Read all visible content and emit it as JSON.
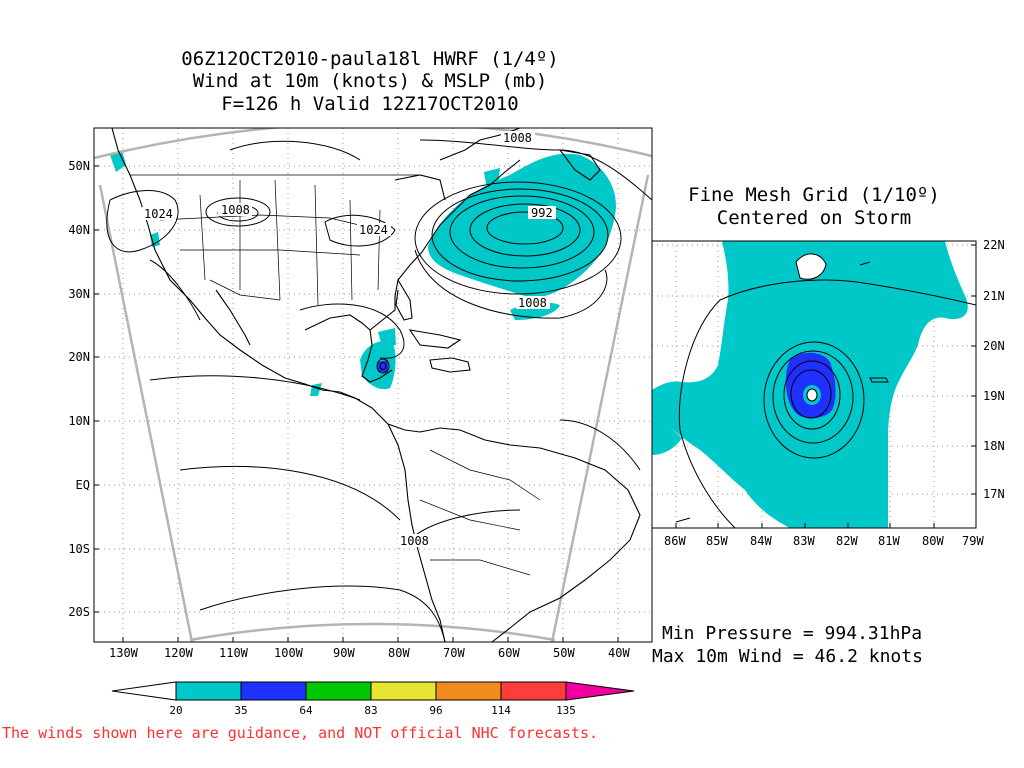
{
  "title": {
    "line1": "06Z12OCT2010-paula18l HWRF (1/4º)",
    "line2": "Wind at 10m (knots) & MSLP (mb)",
    "line3": "F=126 h Valid 12Z17OCT2010"
  },
  "main_map": {
    "lon_labels": [
      "130W",
      "120W",
      "110W",
      "100W",
      "90W",
      "80W",
      "70W",
      "60W",
      "50W",
      "40W"
    ],
    "lat_labels": [
      "50N",
      "40N",
      "30N",
      "20N",
      "10N",
      "EQ",
      "10S",
      "20S"
    ],
    "contour_labels": [
      "1008",
      "1024",
      "1008",
      "1024",
      "992",
      "1008",
      "1008"
    ]
  },
  "inset": {
    "title_line1": "Fine Mesh Grid (1/10º)",
    "title_line2": "Centered on Storm",
    "lon_labels": [
      "86W",
      "85W",
      "84W",
      "83W",
      "82W",
      "81W",
      "80W",
      "79W"
    ],
    "lat_labels": [
      "22N",
      "21N",
      "20N",
      "19N",
      "18N",
      "17N"
    ]
  },
  "stats": {
    "min_pressure": "Min Pressure = 994.31hPa",
    "max_wind": "Max 10m Wind = 46.2 knots"
  },
  "colorbar": {
    "labels": [
      "20",
      "35",
      "64",
      "83",
      "96",
      "114",
      "135"
    ],
    "colors": [
      "#00c8c8",
      "#2030ff",
      "#00c800",
      "#e6e632",
      "#f08c1e",
      "#ff3c3c",
      "#f000a0"
    ]
  },
  "disclaimer": "The winds shown here are guidance, and NOT official NHC forecasts."
}
